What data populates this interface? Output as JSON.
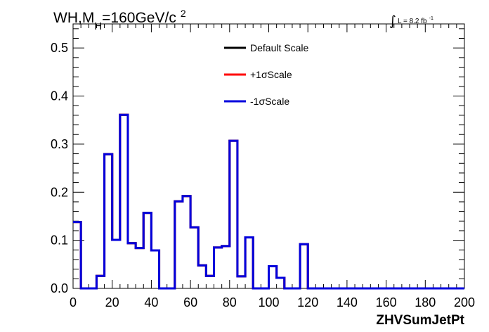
{
  "chart_data": {
    "type": "histogram",
    "title": {
      "main": "WH,M",
      "sub": "H",
      "rest": "=160GeV/c",
      "sup": "2"
    },
    "lumi": {
      "symbol": "∫",
      "text": "L = 8.2 fb",
      "sup": "-1"
    },
    "xlabel": "ZHVSumJetPt",
    "ylabel": "",
    "xlim": [
      0,
      200
    ],
    "ylim": [
      0,
      0.55
    ],
    "x_ticks": [
      0,
      20,
      40,
      60,
      80,
      100,
      120,
      140,
      160,
      180,
      200
    ],
    "x_tick_labels": [
      "0",
      "20",
      "40",
      "60",
      "80",
      "100",
      "120",
      "140",
      "160",
      "180",
      "200"
    ],
    "y_ticks": [
      0,
      0.1,
      0.2,
      0.3,
      0.4,
      0.5
    ],
    "y_tick_labels": [
      "0.0",
      "0.1",
      "0.2",
      "0.3",
      "0.4",
      "0.5"
    ],
    "bin_width": 4,
    "legend_position": "top-center",
    "series": [
      {
        "name": "Default Scale",
        "color": "#000000",
        "values": [
          0.138,
          0,
          0,
          0.026,
          0.279,
          0.101,
          0.361,
          0.094,
          0.084,
          0.157,
          0.079,
          0,
          0,
          0.181,
          0.192,
          0.127,
          0.048,
          0.026,
          0.085,
          0.088,
          0.307,
          0.025,
          0.106,
          0,
          0,
          0.046,
          0.022,
          0,
          0,
          0.092,
          0,
          0,
          0,
          0,
          0,
          0,
          0,
          0,
          0,
          0,
          0,
          0,
          0,
          0,
          0,
          0,
          0,
          0,
          0,
          0
        ]
      },
      {
        "name": "+1σScale",
        "color": "#ff0000",
        "values": [
          0.138,
          0,
          0,
          0.026,
          0.279,
          0.101,
          0.361,
          0.094,
          0.084,
          0.157,
          0.079,
          0,
          0,
          0.181,
          0.192,
          0.127,
          0.048,
          0.026,
          0.085,
          0.088,
          0.307,
          0.025,
          0.106,
          0,
          0,
          0.046,
          0.022,
          0,
          0,
          0.092,
          0,
          0,
          0,
          0,
          0,
          0,
          0,
          0,
          0,
          0,
          0,
          0,
          0,
          0,
          0,
          0,
          0,
          0,
          0,
          0
        ]
      },
      {
        "name": "-1σScale",
        "color": "#0000dd",
        "values": [
          0.138,
          0,
          0,
          0.026,
          0.279,
          0.101,
          0.361,
          0.094,
          0.084,
          0.157,
          0.079,
          0,
          0,
          0.181,
          0.192,
          0.127,
          0.048,
          0.026,
          0.085,
          0.088,
          0.307,
          0.025,
          0.106,
          0,
          0,
          0.046,
          0.022,
          0,
          0,
          0.092,
          0,
          0,
          0,
          0,
          0,
          0,
          0,
          0,
          0,
          0,
          0,
          0,
          0,
          0,
          0,
          0,
          0,
          0,
          0,
          0
        ]
      }
    ]
  }
}
